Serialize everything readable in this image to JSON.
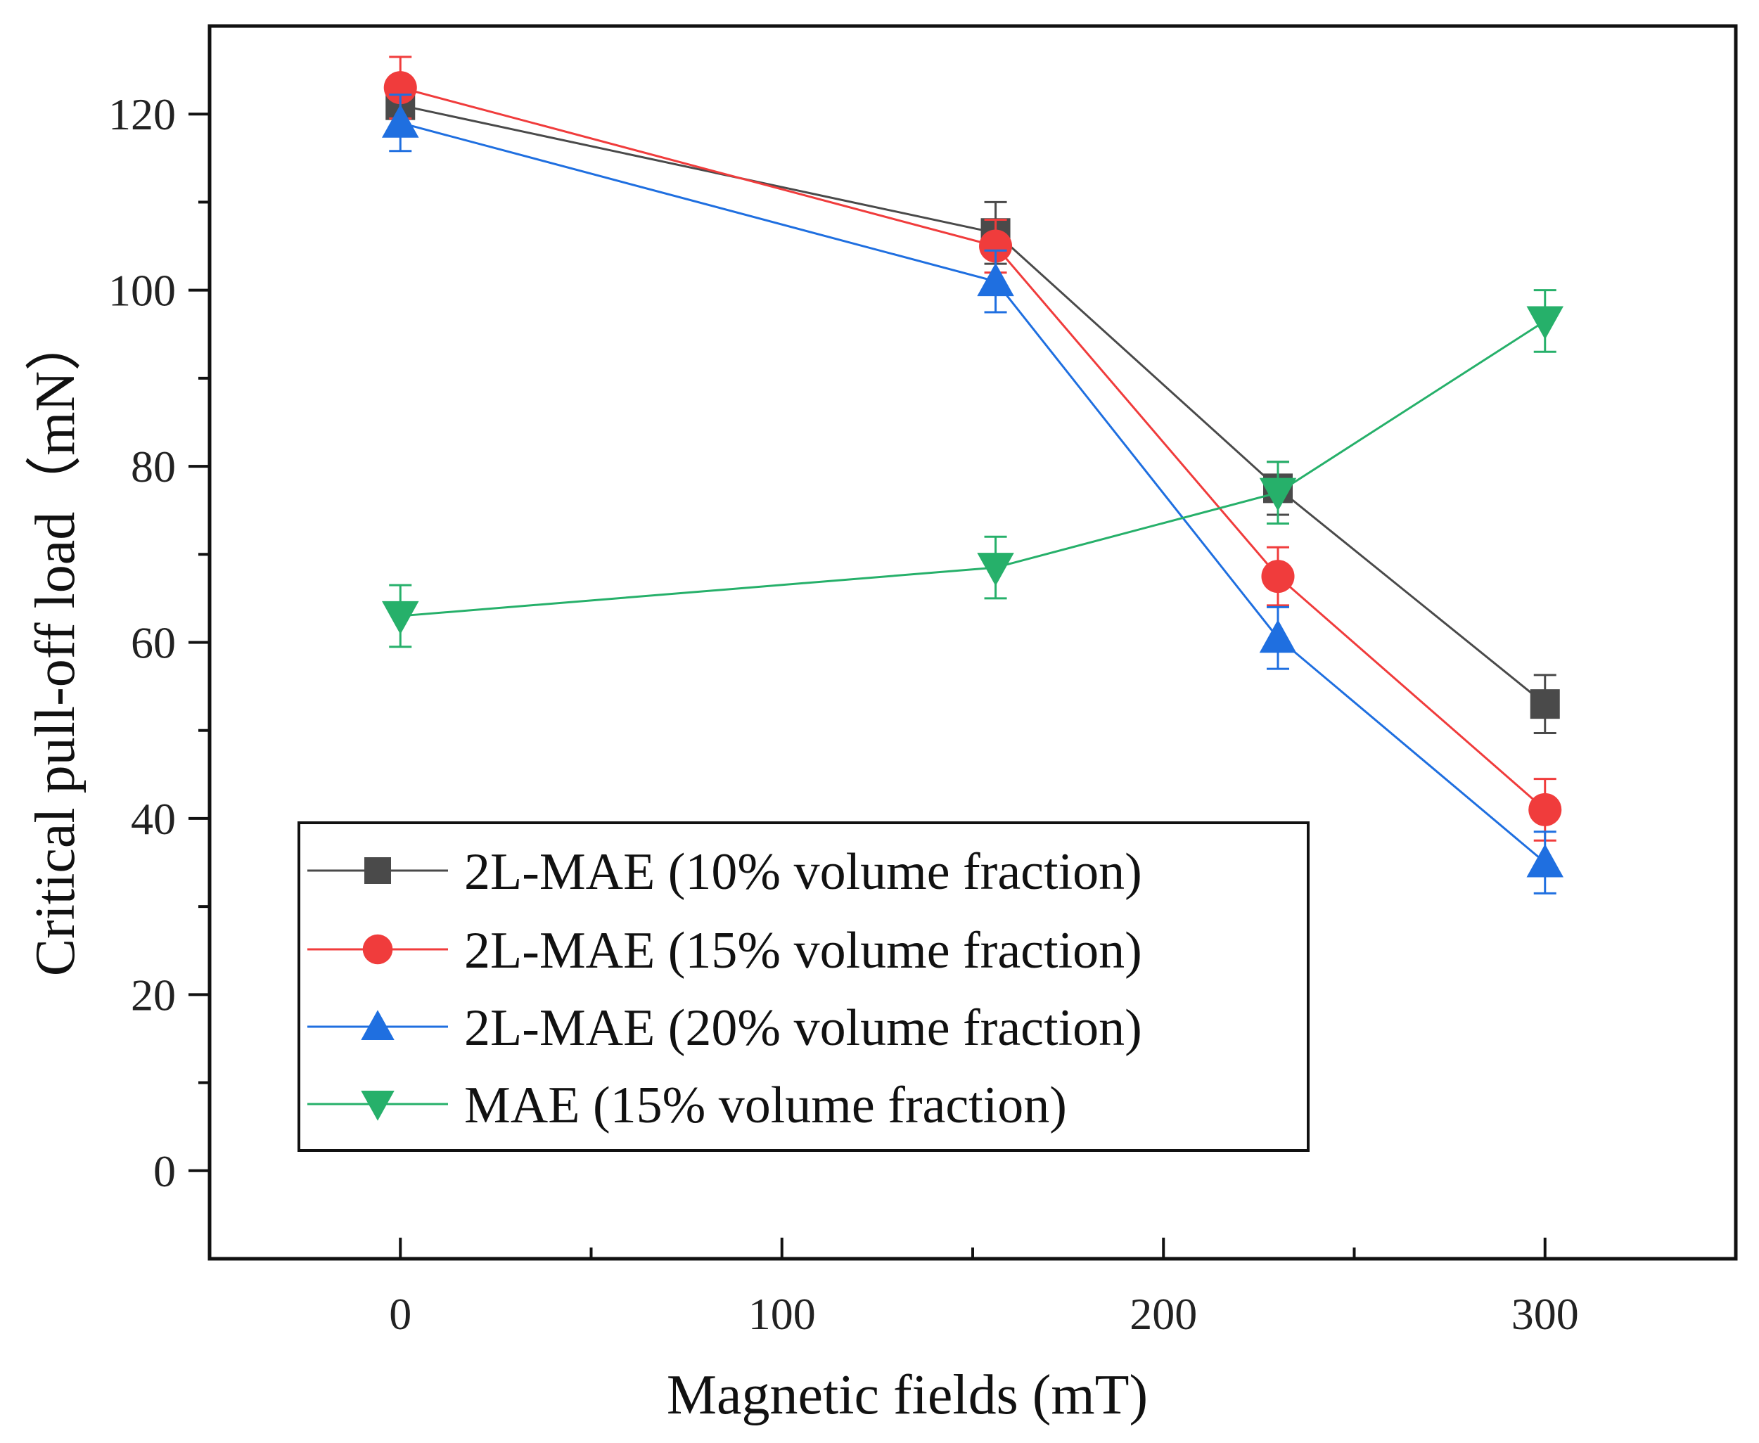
{
  "chart_data": {
    "type": "line",
    "xlabel": "Magnetic fields (mT)",
    "ylabel": "Critical pull-off load（mN）",
    "xlim": [
      -50,
      350
    ],
    "ylim": [
      -10,
      130
    ],
    "xticks": [
      0,
      100,
      200,
      300
    ],
    "xticks_minor": [
      50,
      150,
      250
    ],
    "yticks": [
      0,
      20,
      40,
      60,
      80,
      100,
      120
    ],
    "yticks_minor": [
      10,
      30,
      50,
      70,
      90,
      110
    ],
    "grid": false,
    "legend_position": "bottom-left",
    "x": [
      0,
      156,
      230,
      300
    ],
    "series": [
      {
        "name": "2L-MAE (10% volume fraction)",
        "color": "#4a4a4a",
        "marker": "square",
        "values": [
          121,
          106.5,
          77.5,
          53
        ],
        "errors": [
          3,
          3.5,
          3,
          3.3
        ]
      },
      {
        "name": "2L-MAE (15% volume fraction)",
        "color": "#f03c3c",
        "marker": "circle",
        "values": [
          123,
          105,
          67.5,
          41
        ],
        "errors": [
          3.5,
          3,
          3.3,
          3.5
        ]
      },
      {
        "name": "2L-MAE (20% volume fraction)",
        "color": "#1f6fe0",
        "marker": "triangle-up",
        "values": [
          119,
          101,
          60.5,
          35
        ],
        "errors": [
          3.2,
          3.5,
          3.5,
          3.5
        ]
      },
      {
        "name": "MAE (15% volume fraction)",
        "color": "#26b06a",
        "marker": "triangle-down",
        "values": [
          63,
          68.5,
          77,
          96.5
        ],
        "errors": [
          3.5,
          3.5,
          3.5,
          3.5
        ]
      }
    ]
  }
}
